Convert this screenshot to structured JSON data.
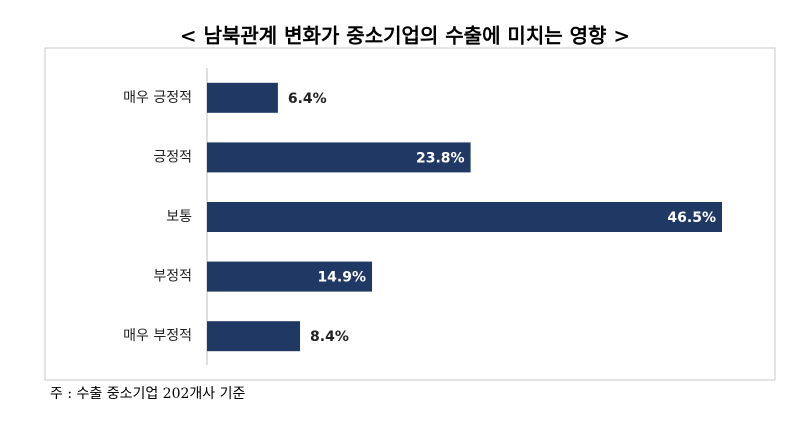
{
  "chart_data": {
    "type": "hbar",
    "title": "< 남북관계 변화가 중소기업의 수출에 미치는 영향 >",
    "categories": [
      "매우 긍정적",
      "긍정적",
      "보통",
      "부정적",
      "매우 부정적"
    ],
    "values": [
      6.4,
      23.8,
      46.5,
      14.9,
      8.4
    ],
    "value_labels": [
      "6.4%",
      "23.8%",
      "46.5%",
      "14.9%",
      "8.4%"
    ],
    "color": "#1f3864",
    "note": "주 : 수출 중소기업 202개사 기준"
  }
}
